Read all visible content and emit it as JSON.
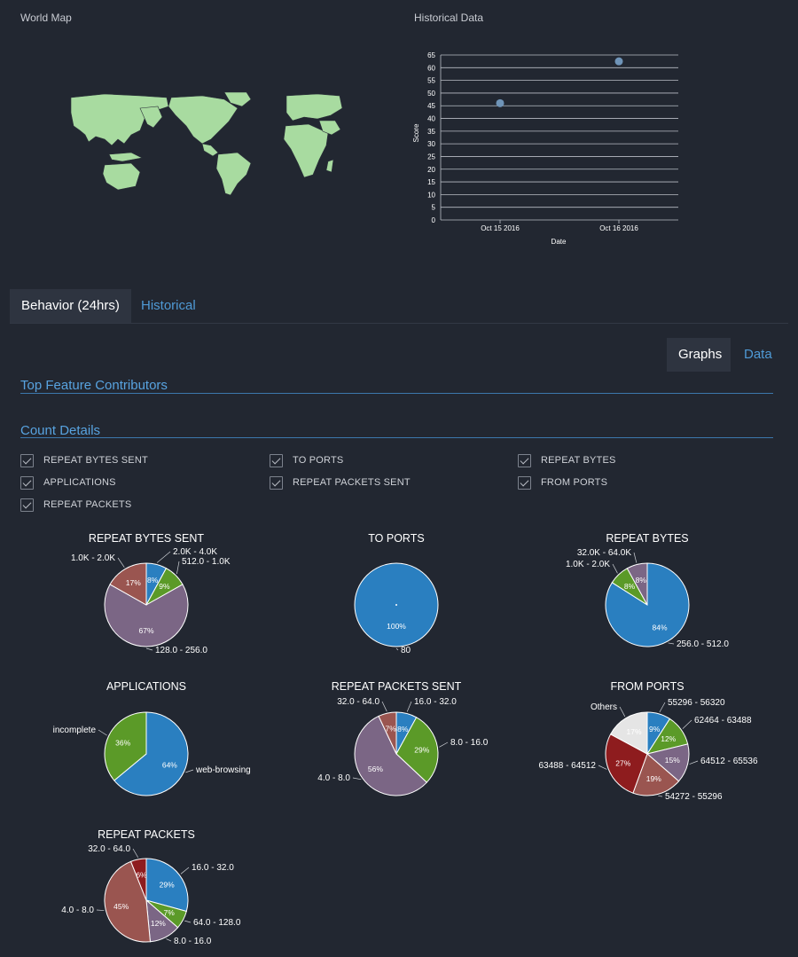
{
  "world_map": {
    "label": "World Map",
    "land_color": "#a8dba0"
  },
  "historical": {
    "label": "Historical Data",
    "chart_data": {
      "type": "scatter",
      "xlabel": "Date",
      "ylabel": "Score",
      "ylim": [
        0,
        65
      ],
      "y_ticks": [
        "0",
        "5",
        "10",
        "15",
        "20",
        "25",
        "30",
        "35",
        "40",
        "45",
        "50",
        "55",
        "60",
        "65"
      ],
      "x_ticks": [
        "Oct 15 2016",
        "Oct 16 2016"
      ],
      "points": [
        {
          "x": "Oct 15 2016",
          "y": 46
        },
        {
          "x": "Oct 16 2016",
          "y": 62.5
        }
      ],
      "grid": true,
      "point_color": "#6f94b8"
    }
  },
  "tabs": [
    {
      "label": "Behavior (24hrs)"
    },
    {
      "label": "Historical"
    }
  ],
  "subtabs": [
    {
      "label": "Graphs"
    },
    {
      "label": "Data"
    }
  ],
  "headings": {
    "top": "Top Feature Contributors",
    "count": "Count Details"
  },
  "checkboxes": [
    {
      "label": "REPEAT BYTES SENT"
    },
    {
      "label": "TO PORTS"
    },
    {
      "label": "REPEAT BYTES"
    },
    {
      "label": "APPLICATIONS"
    },
    {
      "label": "REPEAT PACKETS SENT"
    },
    {
      "label": "FROM PORTS"
    },
    {
      "label": "REPEAT PACKETS"
    }
  ],
  "colors": {
    "blue": "#2a7fc0",
    "green": "#5b9a28",
    "purple": "#7b6685",
    "brown": "#9a5550",
    "darkred": "#8e1c1e",
    "lightgray": "#e5e5e5"
  },
  "chart_data": [
    {
      "type": "pie",
      "title": "REPEAT BYTES SENT",
      "slices": [
        {
          "label": "2.0K - 4.0K",
          "value": 8,
          "pct": "8%",
          "color": "blue"
        },
        {
          "label": "512.0 - 1.0K",
          "value": 9,
          "pct": "9%",
          "color": "green"
        },
        {
          "label": "128.0 - 256.0",
          "value": 67,
          "pct": "67%",
          "color": "purple"
        },
        {
          "label": "1.0K - 2.0K",
          "value": 17,
          "pct": "17%",
          "color": "brown"
        }
      ]
    },
    {
      "type": "pie",
      "title": "TO PORTS",
      "slices": [
        {
          "label": "80",
          "value": 100,
          "pct": "100%",
          "color": "blue"
        }
      ]
    },
    {
      "type": "pie",
      "title": "REPEAT BYTES",
      "slices": [
        {
          "label": "256.0 - 512.0",
          "value": 84,
          "pct": "84%",
          "color": "blue"
        },
        {
          "label": "1.0K - 2.0K",
          "value": 8,
          "pct": "8%",
          "color": "green"
        },
        {
          "label": "32.0K - 64.0K",
          "value": 8,
          "pct": "8%",
          "color": "purple"
        }
      ]
    },
    {
      "type": "pie",
      "title": "APPLICATIONS",
      "slices": [
        {
          "label": "web-browsing",
          "value": 64,
          "pct": "64%",
          "color": "blue"
        },
        {
          "label": "incomplete",
          "value": 36,
          "pct": "36%",
          "color": "green"
        }
      ]
    },
    {
      "type": "pie",
      "title": "REPEAT PACKETS SENT",
      "slices": [
        {
          "label": "16.0 - 32.0",
          "value": 8,
          "pct": "8%",
          "color": "blue"
        },
        {
          "label": "8.0 - 16.0",
          "value": 29,
          "pct": "29%",
          "color": "green"
        },
        {
          "label": "4.0 - 8.0",
          "value": 56,
          "pct": "56%",
          "color": "purple"
        },
        {
          "label": "32.0 - 64.0",
          "value": 7,
          "pct": "7%",
          "color": "brown"
        }
      ]
    },
    {
      "type": "pie",
      "title": "FROM PORTS",
      "slices": [
        {
          "label": "55296 - 56320",
          "value": 9,
          "pct": "9%",
          "color": "blue"
        },
        {
          "label": "62464 - 63488",
          "value": 12,
          "pct": "12%",
          "color": "green"
        },
        {
          "label": "64512 - 65536",
          "value": 15,
          "pct": "15%",
          "color": "purple"
        },
        {
          "label": "54272 - 55296",
          "value": 19,
          "pct": "19%",
          "color": "brown"
        },
        {
          "label": "63488 - 64512",
          "value": 27,
          "pct": "27%",
          "color": "darkred"
        },
        {
          "label": "Others",
          "value": 17,
          "pct": "17%",
          "color": "lightgray"
        }
      ]
    },
    {
      "type": "pie",
      "title": "REPEAT PACKETS",
      "slices": [
        {
          "label": "16.0 - 32.0",
          "value": 29,
          "pct": "29%",
          "color": "blue"
        },
        {
          "label": "64.0 - 128.0",
          "value": 7,
          "pct": "7%",
          "color": "green"
        },
        {
          "label": "8.0 - 16.0",
          "value": 12,
          "pct": "12%",
          "color": "purple"
        },
        {
          "label": "4.0 - 8.0",
          "value": 45,
          "pct": "45%",
          "color": "brown"
        },
        {
          "label": "32.0 - 64.0",
          "value": 6,
          "pct": "6%",
          "color": "darkred"
        }
      ]
    }
  ]
}
